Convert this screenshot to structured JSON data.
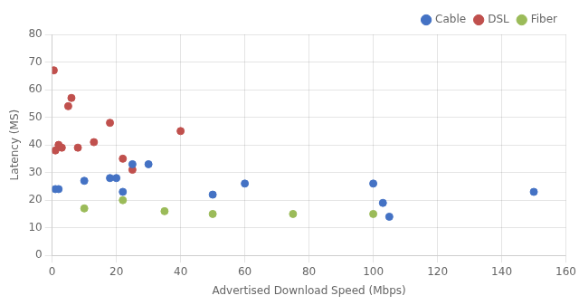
{
  "chart_data": {
    "type": "scatter",
    "xlabel": "Advertised Download Speed (Mbps)",
    "ylabel": "Latency (MS)",
    "series": [
      {
        "name": "Cable",
        "color": "#4472C4",
        "x": [
          1,
          2,
          10,
          18,
          20,
          22,
          25,
          30,
          50,
          60,
          100,
          103,
          105,
          150
        ],
        "values": [
          24,
          24,
          27,
          28,
          28,
          23,
          33,
          33,
          22,
          26,
          26,
          19,
          14,
          23
        ]
      },
      {
        "name": "DSL",
        "color": "#C0504D",
        "x": [
          0.5,
          1,
          2,
          3,
          5,
          6,
          8,
          13,
          18,
          22,
          25,
          40
        ],
        "values": [
          67,
          38,
          40,
          39,
          54,
          57,
          39,
          41,
          48,
          35,
          31,
          45
        ]
      },
      {
        "name": "Fiber",
        "color": "#9BBB59",
        "x": [
          10,
          22,
          35,
          50,
          75,
          100
        ],
        "values": [
          17,
          20,
          16,
          15,
          15,
          15
        ]
      }
    ],
    "xlim": [
      0,
      160
    ],
    "ylim": [
      0,
      80
    ],
    "xticks": [
      0,
      20,
      40,
      60,
      80,
      100,
      120,
      140,
      160
    ],
    "yticks": [
      0,
      10,
      20,
      30,
      40,
      50,
      60,
      70,
      80
    ],
    "grid": true,
    "legend": "upper right"
  }
}
